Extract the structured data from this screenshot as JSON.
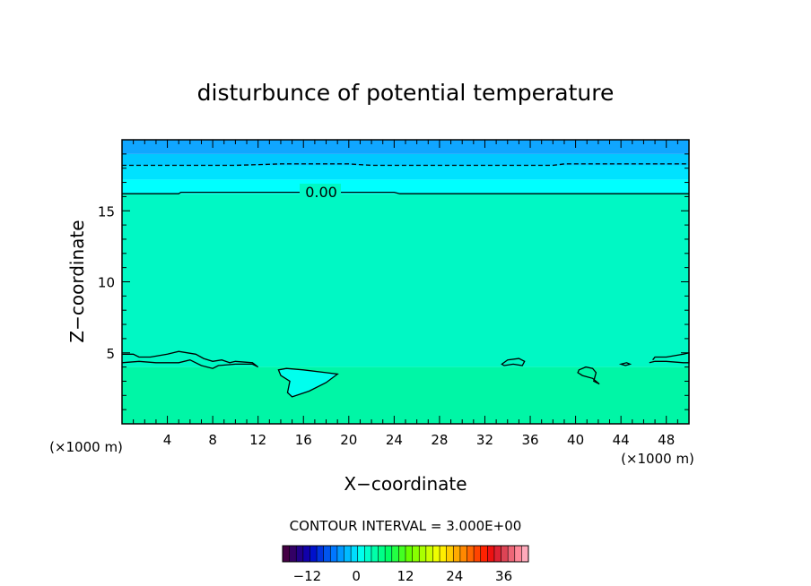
{
  "chart_data": {
    "type": "heatmap",
    "title": "disturbunce of potential temperature",
    "xlabel": "X−coordinate",
    "ylabel": "Z−coordinate",
    "x_unit_left": "(×1000 m)",
    "x_unit_right": "(×1000 m)",
    "xlim": [
      0,
      50
    ],
    "ylim": [
      0,
      20
    ],
    "x_ticks": [
      4,
      8,
      12,
      16,
      20,
      24,
      28,
      32,
      36,
      40,
      44,
      48
    ],
    "x_tick_labels": [
      "4",
      "8",
      "12",
      "16",
      "20",
      "24",
      "28",
      "32",
      "36",
      "40",
      "44",
      "48"
    ],
    "y_ticks": [
      5,
      10,
      15
    ],
    "y_tick_labels": [
      "5",
      "10",
      "15"
    ],
    "contour_label": "0.00",
    "contour_interval_text": "CONTOUR INTERVAL = 3.000E+00",
    "colorbar": {
      "range": [
        -18,
        42
      ],
      "ticks": [
        -12,
        0,
        12,
        24,
        36
      ],
      "tick_labels": [
        "−12",
        "0",
        "12",
        "24",
        "36"
      ]
    },
    "field_bands": [
      {
        "z_from": 0,
        "z_to": 4,
        "value": 1.5,
        "color": "#00f6a6"
      },
      {
        "z_from": 4,
        "z_to": 16.2,
        "value": 0.5,
        "color": "#00f8c4"
      },
      {
        "z_from": 16.2,
        "z_to": 17.2,
        "value": -1,
        "color": "#00ffff"
      },
      {
        "z_from": 17.2,
        "z_to": 18.2,
        "value": -2,
        "color": "#00e2ff"
      },
      {
        "z_from": 18.2,
        "z_to": 19,
        "value": -3,
        "color": "#00c8ff"
      },
      {
        "z_from": 19,
        "z_to": 20,
        "value": -4,
        "color": "#10a6ff"
      }
    ],
    "contours": [
      {
        "level": 0,
        "style": "solid",
        "points": [
          [
            0,
            16.2
          ],
          [
            5,
            16.2
          ],
          [
            5.2,
            16.3
          ],
          [
            16,
            16.3
          ],
          [
            24,
            16.3
          ],
          [
            24.5,
            16.2
          ],
          [
            50,
            16.2
          ]
        ]
      },
      {
        "level": -3,
        "style": "dashed",
        "points": [
          [
            0,
            18.2
          ],
          [
            10,
            18.2
          ],
          [
            14,
            18.3
          ],
          [
            20,
            18.3
          ],
          [
            22,
            18.2
          ],
          [
            38,
            18.2
          ],
          [
            39,
            18.3
          ],
          [
            50,
            18.3
          ]
        ]
      },
      {
        "level": 0,
        "style": "solid",
        "points": [
          [
            0,
            4.3
          ],
          [
            1.5,
            4.4
          ],
          [
            3,
            4.3
          ],
          [
            5,
            4.3
          ],
          [
            6,
            4.5
          ],
          [
            7,
            4.1
          ],
          [
            8,
            3.9
          ],
          [
            8.5,
            4.1
          ],
          [
            10,
            4.2
          ],
          [
            11.5,
            4.2
          ],
          [
            12,
            4.0
          ],
          [
            11.5,
            4.3
          ],
          [
            10,
            4.4
          ],
          [
            9.5,
            4.3
          ],
          [
            8.8,
            4.5
          ],
          [
            8,
            4.4
          ],
          [
            7.2,
            4.6
          ],
          [
            6.5,
            4.9
          ],
          [
            5,
            5.1
          ],
          [
            4,
            4.9
          ],
          [
            2.5,
            4.7
          ],
          [
            1.5,
            4.7
          ],
          [
            1,
            4.9
          ],
          [
            0.5,
            4.9
          ],
          [
            0,
            4.9
          ]
        ]
      },
      {
        "level": 0,
        "style": "solid",
        "closed": true,
        "points": [
          [
            13.8,
            3.8
          ],
          [
            14.5,
            3.9
          ],
          [
            16,
            3.8
          ],
          [
            18,
            3.6
          ],
          [
            19,
            3.5
          ],
          [
            18,
            2.9
          ],
          [
            16.5,
            2.3
          ],
          [
            15,
            1.9
          ],
          [
            14.6,
            2.2
          ],
          [
            14.8,
            3.0
          ],
          [
            14,
            3.4
          ]
        ]
      },
      {
        "level": 0,
        "style": "solid",
        "closed": true,
        "points": [
          [
            33.5,
            4.2
          ],
          [
            34,
            4.5
          ],
          [
            35,
            4.6
          ],
          [
            35.5,
            4.4
          ],
          [
            35.3,
            4.1
          ],
          [
            34.5,
            4.2
          ],
          [
            33.7,
            4.1
          ]
        ]
      },
      {
        "level": 0,
        "style": "solid",
        "closed": true,
        "points": [
          [
            40.3,
            3.8
          ],
          [
            40.9,
            4.0
          ],
          [
            41.5,
            3.9
          ],
          [
            41.8,
            3.6
          ],
          [
            41.6,
            3.0
          ],
          [
            42.1,
            2.8
          ],
          [
            41.5,
            3.2
          ],
          [
            40.6,
            3.4
          ],
          [
            40.2,
            3.6
          ]
        ]
      },
      {
        "level": 0,
        "style": "solid",
        "points": [
          [
            46.5,
            4.3
          ],
          [
            47,
            4.4
          ],
          [
            48,
            4.4
          ],
          [
            49.5,
            4.3
          ],
          [
            50,
            4.3
          ],
          [
            50,
            5.0
          ],
          [
            49.5,
            4.9
          ],
          [
            48,
            4.7
          ],
          [
            47,
            4.7
          ],
          [
            46.8,
            4.5
          ]
        ]
      },
      {
        "level": 0,
        "style": "solid",
        "closed": true,
        "points": [
          [
            44,
            4.2
          ],
          [
            44.5,
            4.3
          ],
          [
            44.8,
            4.2
          ],
          [
            44.4,
            4.1
          ]
        ]
      }
    ],
    "colorbar_colors": [
      "#440044",
      "#330066",
      "#220088",
      "#1100aa",
      "#0011cc",
      "#0033dd",
      "#0055ee",
      "#0077ff",
      "#0099ff",
      "#00bbff",
      "#00ddff",
      "#00ffee",
      "#00ffcc",
      "#00ffaa",
      "#00ff88",
      "#00ff66",
      "#22ff44",
      "#44ff22",
      "#66ff00",
      "#88ff00",
      "#aaff00",
      "#ccff00",
      "#eeff00",
      "#ffee00",
      "#ffcc00",
      "#ffaa00",
      "#ff8800",
      "#ff6600",
      "#ff4400",
      "#ff2200",
      "#ee1111",
      "#dd2233",
      "#dd4455",
      "#ee6677",
      "#ff8899",
      "#ffaabb"
    ]
  }
}
